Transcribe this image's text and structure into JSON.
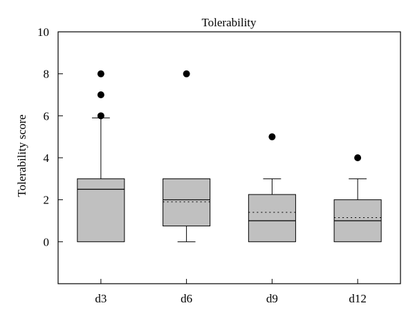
{
  "chart_data": {
    "type": "box",
    "title": "Tolerability",
    "xlabel": "",
    "ylabel": "Tolerability score",
    "ylim": [
      -2,
      10
    ],
    "yticks": [
      0,
      2,
      4,
      6,
      8,
      10
    ],
    "grid": false,
    "legend": "none",
    "categories": [
      "d3",
      "d6",
      "d9",
      "d12"
    ],
    "boxes": [
      {
        "category": "d3",
        "min": 0,
        "q1": 0,
        "median": 2.5,
        "mean": 2.5,
        "q3": 3,
        "max": 5.9,
        "outliers": [
          6,
          7,
          8
        ]
      },
      {
        "category": "d6",
        "min": 0,
        "q1": 0.75,
        "median": 2,
        "mean": 1.9,
        "q3": 3,
        "max": 3,
        "outliers": [
          8
        ]
      },
      {
        "category": "d9",
        "min": 0,
        "q1": 0,
        "median": 1,
        "mean": 1.4,
        "q3": 2.25,
        "max": 3,
        "outliers": [
          5
        ]
      },
      {
        "category": "d12",
        "min": 0,
        "q1": 0,
        "median": 1,
        "mean": 1.15,
        "q3": 2,
        "max": 3,
        "outliers": [
          4
        ]
      }
    ],
    "colors": {
      "box_fill": "#c0c0c0",
      "stroke": "#000000"
    }
  }
}
